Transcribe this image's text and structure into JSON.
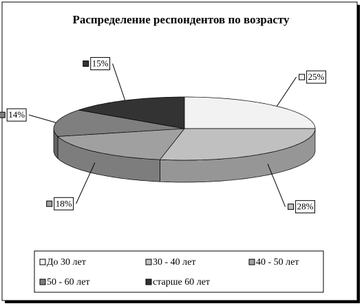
{
  "chart_data": {
    "type": "pie",
    "title": "Распределение респондентов по возрасту",
    "categories": [
      "До 30 лет",
      "30 - 40 лет",
      "40 - 50 лет",
      "50 - 60 лет",
      "старше  60 лет"
    ],
    "values": [
      25,
      28,
      18,
      14,
      15
    ],
    "value_labels": [
      "25%",
      "28%",
      "18%",
      "14%",
      "15%"
    ],
    "colors": [
      "#f2f2f2",
      "#c0c0c0",
      "#a0a0a0",
      "#7f7f7f",
      "#333333"
    ],
    "legend": "bottom"
  }
}
